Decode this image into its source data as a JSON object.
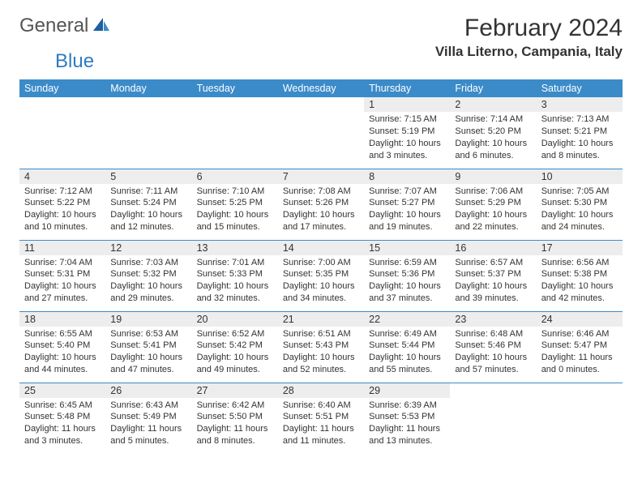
{
  "logo": {
    "general": "General",
    "blue": "Blue"
  },
  "title": "February 2024",
  "location": "Villa Literno, Campania, Italy",
  "colors": {
    "header_bg": "#3b8bc9",
    "header_text": "#ffffff",
    "daynum_bg": "#ededed",
    "rule": "#3b8bc9",
    "logo_blue": "#2e7bc0",
    "logo_gray": "#555555"
  },
  "dayNames": [
    "Sunday",
    "Monday",
    "Tuesday",
    "Wednesday",
    "Thursday",
    "Friday",
    "Saturday"
  ],
  "weeks": [
    [
      null,
      null,
      null,
      null,
      {
        "n": "1",
        "sunrise": "Sunrise: 7:15 AM",
        "sunset": "Sunset: 5:19 PM",
        "daylight": "Daylight: 10 hours and 3 minutes."
      },
      {
        "n": "2",
        "sunrise": "Sunrise: 7:14 AM",
        "sunset": "Sunset: 5:20 PM",
        "daylight": "Daylight: 10 hours and 6 minutes."
      },
      {
        "n": "3",
        "sunrise": "Sunrise: 7:13 AM",
        "sunset": "Sunset: 5:21 PM",
        "daylight": "Daylight: 10 hours and 8 minutes."
      }
    ],
    [
      {
        "n": "4",
        "sunrise": "Sunrise: 7:12 AM",
        "sunset": "Sunset: 5:22 PM",
        "daylight": "Daylight: 10 hours and 10 minutes."
      },
      {
        "n": "5",
        "sunrise": "Sunrise: 7:11 AM",
        "sunset": "Sunset: 5:24 PM",
        "daylight": "Daylight: 10 hours and 12 minutes."
      },
      {
        "n": "6",
        "sunrise": "Sunrise: 7:10 AM",
        "sunset": "Sunset: 5:25 PM",
        "daylight": "Daylight: 10 hours and 15 minutes."
      },
      {
        "n": "7",
        "sunrise": "Sunrise: 7:08 AM",
        "sunset": "Sunset: 5:26 PM",
        "daylight": "Daylight: 10 hours and 17 minutes."
      },
      {
        "n": "8",
        "sunrise": "Sunrise: 7:07 AM",
        "sunset": "Sunset: 5:27 PM",
        "daylight": "Daylight: 10 hours and 19 minutes."
      },
      {
        "n": "9",
        "sunrise": "Sunrise: 7:06 AM",
        "sunset": "Sunset: 5:29 PM",
        "daylight": "Daylight: 10 hours and 22 minutes."
      },
      {
        "n": "10",
        "sunrise": "Sunrise: 7:05 AM",
        "sunset": "Sunset: 5:30 PM",
        "daylight": "Daylight: 10 hours and 24 minutes."
      }
    ],
    [
      {
        "n": "11",
        "sunrise": "Sunrise: 7:04 AM",
        "sunset": "Sunset: 5:31 PM",
        "daylight": "Daylight: 10 hours and 27 minutes."
      },
      {
        "n": "12",
        "sunrise": "Sunrise: 7:03 AM",
        "sunset": "Sunset: 5:32 PM",
        "daylight": "Daylight: 10 hours and 29 minutes."
      },
      {
        "n": "13",
        "sunrise": "Sunrise: 7:01 AM",
        "sunset": "Sunset: 5:33 PM",
        "daylight": "Daylight: 10 hours and 32 minutes."
      },
      {
        "n": "14",
        "sunrise": "Sunrise: 7:00 AM",
        "sunset": "Sunset: 5:35 PM",
        "daylight": "Daylight: 10 hours and 34 minutes."
      },
      {
        "n": "15",
        "sunrise": "Sunrise: 6:59 AM",
        "sunset": "Sunset: 5:36 PM",
        "daylight": "Daylight: 10 hours and 37 minutes."
      },
      {
        "n": "16",
        "sunrise": "Sunrise: 6:57 AM",
        "sunset": "Sunset: 5:37 PM",
        "daylight": "Daylight: 10 hours and 39 minutes."
      },
      {
        "n": "17",
        "sunrise": "Sunrise: 6:56 AM",
        "sunset": "Sunset: 5:38 PM",
        "daylight": "Daylight: 10 hours and 42 minutes."
      }
    ],
    [
      {
        "n": "18",
        "sunrise": "Sunrise: 6:55 AM",
        "sunset": "Sunset: 5:40 PM",
        "daylight": "Daylight: 10 hours and 44 minutes."
      },
      {
        "n": "19",
        "sunrise": "Sunrise: 6:53 AM",
        "sunset": "Sunset: 5:41 PM",
        "daylight": "Daylight: 10 hours and 47 minutes."
      },
      {
        "n": "20",
        "sunrise": "Sunrise: 6:52 AM",
        "sunset": "Sunset: 5:42 PM",
        "daylight": "Daylight: 10 hours and 49 minutes."
      },
      {
        "n": "21",
        "sunrise": "Sunrise: 6:51 AM",
        "sunset": "Sunset: 5:43 PM",
        "daylight": "Daylight: 10 hours and 52 minutes."
      },
      {
        "n": "22",
        "sunrise": "Sunrise: 6:49 AM",
        "sunset": "Sunset: 5:44 PM",
        "daylight": "Daylight: 10 hours and 55 minutes."
      },
      {
        "n": "23",
        "sunrise": "Sunrise: 6:48 AM",
        "sunset": "Sunset: 5:46 PM",
        "daylight": "Daylight: 10 hours and 57 minutes."
      },
      {
        "n": "24",
        "sunrise": "Sunrise: 6:46 AM",
        "sunset": "Sunset: 5:47 PM",
        "daylight": "Daylight: 11 hours and 0 minutes."
      }
    ],
    [
      {
        "n": "25",
        "sunrise": "Sunrise: 6:45 AM",
        "sunset": "Sunset: 5:48 PM",
        "daylight": "Daylight: 11 hours and 3 minutes."
      },
      {
        "n": "26",
        "sunrise": "Sunrise: 6:43 AM",
        "sunset": "Sunset: 5:49 PM",
        "daylight": "Daylight: 11 hours and 5 minutes."
      },
      {
        "n": "27",
        "sunrise": "Sunrise: 6:42 AM",
        "sunset": "Sunset: 5:50 PM",
        "daylight": "Daylight: 11 hours and 8 minutes."
      },
      {
        "n": "28",
        "sunrise": "Sunrise: 6:40 AM",
        "sunset": "Sunset: 5:51 PM",
        "daylight": "Daylight: 11 hours and 11 minutes."
      },
      {
        "n": "29",
        "sunrise": "Sunrise: 6:39 AM",
        "sunset": "Sunset: 5:53 PM",
        "daylight": "Daylight: 11 hours and 13 minutes."
      },
      null,
      null
    ]
  ]
}
